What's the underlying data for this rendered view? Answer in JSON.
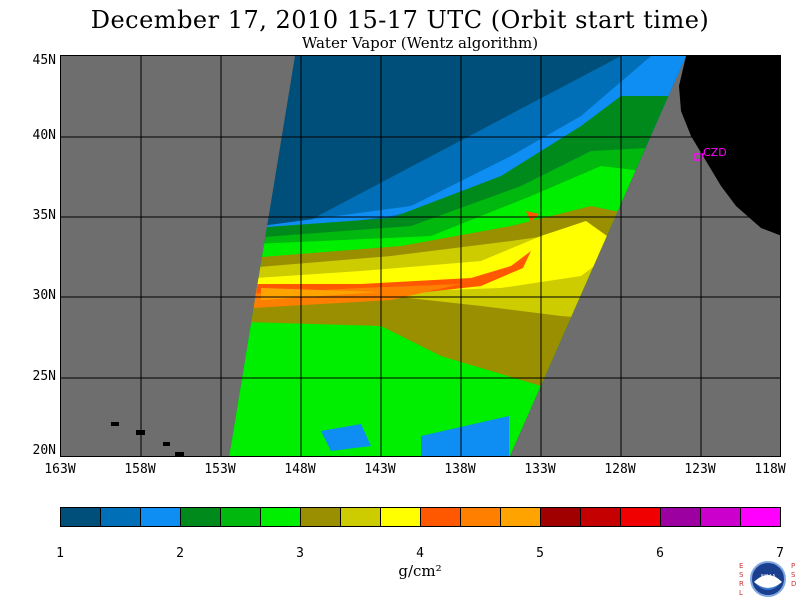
{
  "title": "December 17, 2010  15-17 UTC  (Orbit start time)",
  "subtitle": "Water Vapor (Wentz algorithm)",
  "lat_labels": [
    "45N",
    "40N",
    "35N",
    "30N",
    "25N",
    "20N"
  ],
  "lon_labels": [
    "163W",
    "158W",
    "153W",
    "148W",
    "143W",
    "138W",
    "133W",
    "128W",
    "123W",
    "118W"
  ],
  "station_label": "CZD",
  "colorbar": {
    "labels": [
      "1",
      "2",
      "3",
      "4",
      "5",
      "6",
      "7"
    ],
    "units": "g/cm²",
    "colors": [
      "#004f7a",
      "#006fb8",
      "#0e8df2",
      "#008a1c",
      "#00b80e",
      "#00ee00",
      "#998f00",
      "#cccc00",
      "#ffff00",
      "#ff5800",
      "#ff7f00",
      "#ffa300",
      "#a00000",
      "#c40000",
      "#f00000",
      "#9c00a0",
      "#cc00cc",
      "#ff00ff"
    ]
  },
  "colors": {
    "land": "#000000",
    "no_data": "#6e6e6e",
    "grid": "#000000",
    "station": "#ff00ff"
  },
  "logo": {
    "left_text": "ESRL",
    "right_text": "PSD",
    "center": "NOAA"
  }
}
